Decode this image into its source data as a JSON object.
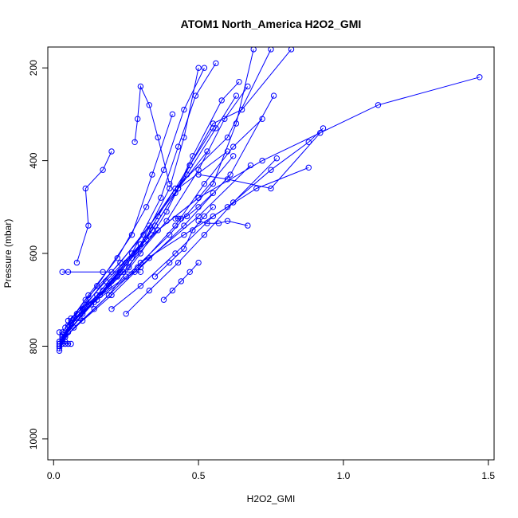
{
  "chart_data": {
    "type": "line",
    "title": "ATOM1 North_America H2O2_GMI",
    "xlabel": "H2O2_GMI",
    "ylabel": "Pressure (mbar)",
    "xlim": [
      -0.02,
      1.52
    ],
    "ylim": [
      1045,
      155
    ],
    "y_reversed": true,
    "grid": false,
    "legend": "none",
    "marker": "open-circle",
    "color": "#0000ff",
    "x_ticks": [
      0.0,
      0.5,
      1.0,
      1.5
    ],
    "x_tick_labels": [
      "0.0",
      "0.5",
      "1.0",
      "1.5"
    ],
    "y_ticks": [
      200,
      400,
      600,
      800,
      1000
    ],
    "y_tick_labels": [
      "200",
      "400",
      "600",
      "800",
      "1000"
    ],
    "series": [
      {
        "x": [
          0.02,
          0.03,
          0.05,
          0.09,
          0.14,
          0.2,
          0.27,
          0.36,
          0.5,
          0.72,
          1.12,
          1.47
        ],
        "y": [
          810,
          790,
          770,
          740,
          705,
          660,
          610,
          550,
          480,
          400,
          280,
          220
        ]
      },
      {
        "x": [
          0.02,
          0.04,
          0.1,
          0.2,
          0.33,
          0.5,
          0.68
        ],
        "y": [
          805,
          780,
          745,
          690,
          610,
          520,
          410
        ]
      },
      {
        "x": [
          0.02,
          0.05,
          0.12,
          0.25,
          0.4,
          0.55,
          0.63,
          0.69
        ],
        "y": [
          800,
          760,
          710,
          650,
          560,
          450,
          320,
          160
        ]
      },
      {
        "x": [
          0.02,
          0.06,
          0.15,
          0.3,
          0.45,
          0.61,
          0.76
        ],
        "y": [
          795,
          750,
          700,
          630,
          540,
          430,
          260
        ]
      },
      {
        "x": [
          0.03,
          0.07,
          0.15,
          0.27,
          0.34,
          0.41
        ],
        "y": [
          790,
          740,
          670,
          560,
          430,
          300
        ]
      },
      {
        "x": [
          0.03,
          0.08,
          0.18,
          0.3,
          0.5,
          0.62
        ],
        "y": [
          780,
          730,
          660,
          580,
          480,
          390
        ]
      },
      {
        "x": [
          0.03,
          0.1,
          0.2,
          0.31,
          0.42,
          0.6,
          0.75
        ],
        "y": [
          785,
          720,
          640,
          560,
          460,
          350,
          160
        ]
      },
      {
        "x": [
          0.04,
          0.13,
          0.26,
          0.36,
          0.47,
          0.55,
          0.65,
          0.82
        ],
        "y": [
          775,
          710,
          630,
          520,
          410,
          320,
          290,
          160
        ]
      },
      {
        "x": [
          0.04,
          0.12,
          0.22,
          0.32,
          0.38,
          0.45,
          0.52
        ],
        "y": [
          760,
          690,
          610,
          500,
          420,
          290,
          200
        ]
      },
      {
        "x": [
          0.05,
          0.15,
          0.27,
          0.37,
          0.43,
          0.49,
          0.56
        ],
        "y": [
          755,
          690,
          600,
          480,
          370,
          260,
          190
        ]
      },
      {
        "x": [
          0.05,
          0.17,
          0.3,
          0.4,
          0.45,
          0.5
        ],
        "y": [
          745,
          680,
          580,
          460,
          350,
          200
        ]
      },
      {
        "x": [
          0.06,
          0.19,
          0.32,
          0.42,
          0.48,
          0.58,
          0.64
        ],
        "y": [
          740,
          670,
          570,
          470,
          390,
          270,
          230
        ]
      },
      {
        "x": [
          0.02,
          0.08,
          0.22,
          0.35,
          0.46,
          0.56,
          0.63
        ],
        "y": [
          790,
          740,
          650,
          540,
          430,
          330,
          260
        ]
      },
      {
        "x": [
          0.03,
          0.1,
          0.24,
          0.39,
          0.5,
          0.59,
          0.67
        ],
        "y": [
          785,
          730,
          640,
          530,
          420,
          310,
          240
        ]
      },
      {
        "x": [
          0.02,
          0.07,
          0.19,
          0.3,
          0.39,
          0.47,
          0.55
        ],
        "y": [
          800,
          760,
          690,
          600,
          510,
          410,
          330
        ]
      },
      {
        "x": [
          0.03,
          0.11,
          0.23,
          0.33,
          0.43,
          0.53
        ],
        "y": [
          770,
          700,
          620,
          540,
          460,
          380
        ]
      },
      {
        "x": [
          0.04,
          0.14,
          0.29,
          0.42,
          0.52,
          0.62,
          0.72
        ],
        "y": [
          780,
          720,
          630,
          540,
          450,
          370,
          310
        ]
      },
      {
        "x": [
          0.02,
          0.06,
          0.16,
          0.25,
          0.34,
          0.43,
          0.6
        ],
        "y": [
          790,
          750,
          690,
          620,
          550,
          460,
          380
        ]
      },
      {
        "x": [
          0.08,
          0.12,
          0.11,
          0.17,
          0.2
        ],
        "y": [
          620,
          540,
          460,
          420,
          380
        ]
      },
      {
        "x": [
          0.28,
          0.29,
          0.3,
          0.33,
          0.36,
          0.4
        ],
        "y": [
          360,
          310,
          240,
          280,
          350,
          450
        ]
      },
      {
        "x": [
          0.03,
          0.05,
          0.17,
          0.23,
          0.28,
          0.3
        ],
        "y": [
          640,
          640,
          640,
          640,
          640,
          640
        ]
      },
      {
        "x": [
          0.5,
          0.53,
          0.57,
          0.6,
          0.67
        ],
        "y": [
          530,
          535,
          535,
          530,
          540
        ]
      },
      {
        "x": [
          0.42,
          0.43,
          0.44,
          0.46,
          0.5,
          0.55
        ],
        "y": [
          525,
          525,
          525,
          520,
          500,
          470
        ]
      },
      {
        "x": [
          0.02,
          0.03,
          0.04,
          0.05,
          0.06
        ],
        "y": [
          795,
          795,
          795,
          795,
          795
        ]
      },
      {
        "x": [
          0.02,
          0.03,
          0.03,
          0.04
        ],
        "y": [
          770,
          775,
          780,
          790
        ]
      },
      {
        "x": [
          0.3,
          0.45,
          0.6,
          0.75,
          0.88,
          0.93
        ],
        "y": [
          620,
          560,
          500,
          420,
          360,
          330
        ]
      },
      {
        "x": [
          0.5,
          0.6,
          0.75,
          0.92
        ],
        "y": [
          430,
          440,
          460,
          340
        ]
      },
      {
        "x": [
          0.25,
          0.33,
          0.43,
          0.52,
          0.62,
          0.77
        ],
        "y": [
          730,
          680,
          620,
          560,
          490,
          395
        ]
      },
      {
        "x": [
          0.2,
          0.3,
          0.42,
          0.55,
          0.7,
          0.88
        ],
        "y": [
          720,
          670,
          600,
          520,
          460,
          415
        ]
      },
      {
        "x": [
          0.38,
          0.41,
          0.44,
          0.47,
          0.5
        ],
        "y": [
          700,
          680,
          660,
          640,
          620
        ]
      },
      {
        "x": [
          0.35,
          0.4,
          0.45,
          0.48,
          0.52,
          0.55
        ],
        "y": [
          650,
          620,
          590,
          550,
          520,
          500
        ]
      }
    ]
  }
}
